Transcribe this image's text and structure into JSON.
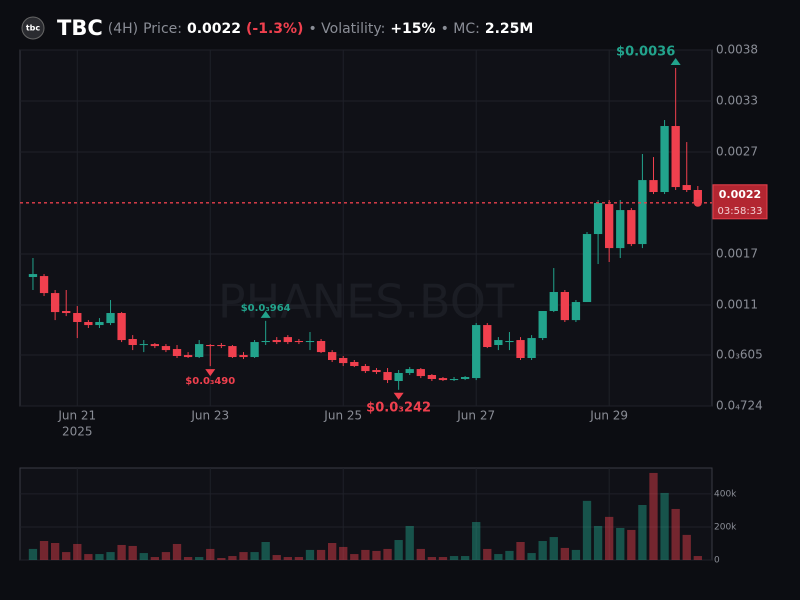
{
  "header": {
    "icon_text": "tbc",
    "symbol": "TBC",
    "interval": "(4H)",
    "price_label": "Price:",
    "price": "0.0022",
    "change": "(-1.3%)",
    "volatility_label": "• Volatility:",
    "volatility": "+15%",
    "mc_label": "• MC:",
    "mc": "2.25M"
  },
  "chart_data": {
    "type": "candlestick",
    "watermark": "PHANES.BOT",
    "up_color": "#22a38c",
    "down_color": "#f0404e",
    "open": [
      0.001423,
      0.001433,
      0.001255,
      0.001067,
      0.001046,
      0.000952,
      0.00092,
      0.000941,
      0.001046,
      0.000774,
      0.000711,
      0.000721,
      0.0007,
      0.000669,
      0.000606,
      0.000585,
      0.000711,
      0.000711,
      0.0007,
      0.000606,
      0.000585,
      0.000742,
      0.000763,
      0.000794,
      0.000753,
      0.000742,
      0.000753,
      0.000637,
      0.000575,
      0.000533,
      0.000491,
      0.000449,
      0.000428,
      0.000334,
      0.000418,
      0.000459,
      0.000397,
      0.000365,
      0.000344,
      0.000355,
      0.000365,
      0.00092,
      0.000711,
      0.000742,
      0.000763,
      0.000575,
      0.000784,
      0.001067,
      0.001266,
      0.000972,
      0.001161,
      0.001873,
      0.002187,
      0.001726,
      0.002124,
      0.001768,
      0.002438,
      0.002313,
      0.003004,
      0.002386,
      0.002334
    ],
    "high": [
      0.001622,
      0.001454,
      0.001287,
      0.001287,
      0.001119,
      0.000972,
      0.000993,
      0.001182,
      0.001056,
      0.000815,
      0.000763,
      0.000732,
      0.000721,
      0.000711,
      0.000637,
      0.000763,
      0.000721,
      0.000732,
      0.000711,
      0.000637,
      0.000763,
      0.000964,
      0.000794,
      0.000815,
      0.000774,
      0.000847,
      0.000774,
      0.000658,
      0.000596,
      0.000554,
      0.000512,
      0.00047,
      0.00047,
      0.000449,
      0.00048,
      0.00047,
      0.000407,
      0.000376,
      0.000376,
      0.000386,
      0.000941,
      0.000941,
      0.000794,
      0.000847,
      0.000794,
      0.000815,
      0.001067,
      0.001517,
      0.001287,
      0.001182,
      0.001894,
      0.002229,
      0.002229,
      0.002229,
      0.002145,
      0.002711,
      0.002679,
      0.003067,
      0.003612,
      0.002836,
      0.002376
    ],
    "low": [
      0.001287,
      0.001224,
      0.000972,
      0.001014,
      0.000784,
      0.000889,
      0.000889,
      0.00092,
      0.000742,
      0.000658,
      0.000637,
      0.000679,
      0.000637,
      0.000575,
      0.000575,
      0.000575,
      0.00049,
      0.000679,
      0.000575,
      0.000564,
      0.000575,
      0.000711,
      0.000721,
      0.000721,
      0.000721,
      0.000658,
      0.000627,
      0.000533,
      0.000491,
      0.00048,
      0.000418,
      0.000407,
      0.000313,
      0.000242,
      0.000397,
      0.000365,
      0.000334,
      0.000334,
      0.000334,
      0.000344,
      0.000344,
      0.000679,
      0.000658,
      0.000658,
      0.000554,
      0.000554,
      0.000763,
      0.001056,
      0.000952,
      0.000952,
      0.001161,
      0.001559,
      0.00158,
      0.001622,
      0.001747,
      0.001726,
      0.002292,
      0.002292,
      0.002334,
      0.002313,
      0.0022
    ],
    "close": [
      0.001454,
      0.001255,
      0.001056,
      0.001046,
      0.000952,
      0.00092,
      0.000952,
      0.001046,
      0.000763,
      0.000711,
      0.000721,
      0.0007,
      0.000658,
      0.000596,
      0.000585,
      0.000721,
      0.0007,
      0.0007,
      0.000585,
      0.000585,
      0.000742,
      0.000753,
      0.000742,
      0.000742,
      0.000742,
      0.000753,
      0.000637,
      0.000554,
      0.000522,
      0.000491,
      0.000438,
      0.000428,
      0.000344,
      0.000418,
      0.000459,
      0.000386,
      0.000355,
      0.000344,
      0.000355,
      0.000376,
      0.00092,
      0.00069,
      0.000763,
      0.000753,
      0.000575,
      0.000784,
      0.001067,
      0.001266,
      0.000972,
      0.001161,
      0.001873,
      0.002198,
      0.001726,
      0.002124,
      0.001768,
      0.002438,
      0.002313,
      0.003004,
      0.002365,
      0.002334,
      0.0022
    ],
    "xlim": [
      -1.17,
      61.28
    ],
    "xticks": [
      {
        "value": 4,
        "label": "Jun 21"
      },
      {
        "value": 16,
        "label": "Jun 23"
      },
      {
        "value": 28,
        "label": "Jun 25"
      },
      {
        "value": 40,
        "label": "Jun 27"
      },
      {
        "value": 52,
        "label": "Jun 29"
      }
    ],
    "year_label": "2025",
    "ylim": [
      7.24e-05,
      0.0038
    ],
    "yticks": [
      0.0038,
      {
        "value": 0.003266,
        "label": "0.0033"
      },
      {
        "value": 0.002732,
        "label": "0.0027"
      },
      {
        "value": 0.001664,
        "label": "0.0017"
      },
      {
        "value": 0.00113,
        "label": "0.0011"
      },
      {
        "value": 0.000606,
        "label": "0.0₃605"
      },
      {
        "value": 7.24e-05,
        "label": "0.0₄724"
      }
    ],
    "grid": true,
    "annotations": [
      {
        "value": 0.003612,
        "label": "$0.0036"
      },
      {
        "value": 0.00049,
        "label": "$0.0₃490"
      },
      {
        "value": 0.000964,
        "label": "$0.0₃964"
      },
      {
        "value": 0.000242,
        "label": "$0.0₃242"
      }
    ],
    "last_price": {
      "value": 0.0022,
      "label": "0.0022",
      "countdown": "03:58:33",
      "color": "#e8404c"
    },
    "volume": {
      "values": [
        67000,
        115000,
        103000,
        48000,
        97000,
        36000,
        36000,
        48000,
        91000,
        85000,
        42000,
        18000,
        48000,
        97000,
        18000,
        18000,
        67000,
        12000,
        24000,
        48000,
        48000,
        109000,
        30000,
        18000,
        18000,
        61000,
        61000,
        103000,
        79000,
        36000,
        61000,
        55000,
        67000,
        121000,
        206000,
        67000,
        18000,
        18000,
        24000,
        24000,
        230000,
        67000,
        36000,
        55000,
        109000,
        42000,
        115000,
        139000,
        73000,
        61000,
        358000,
        206000,
        261000,
        194000,
        182000,
        333000,
        527000,
        406000,
        309000,
        152000,
        24000
      ],
      "ylim": [
        0,
        557000
      ],
      "yticks": [
        0,
        {
          "value": 200000,
          "label": "200k"
        },
        {
          "value": 400000,
          "label": "400k"
        }
      ]
    }
  }
}
